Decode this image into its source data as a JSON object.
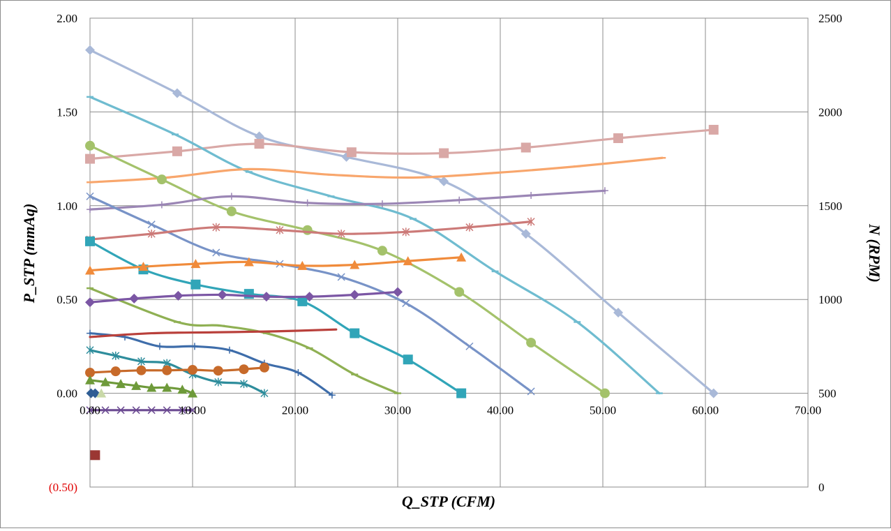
{
  "chart_data": {
    "type": "line",
    "title": "",
    "xlabel": "Q_STP (CFM)",
    "ylabel": "P_STP (mmAq)",
    "y2label": "N (RPM)",
    "xlim": [
      0,
      70
    ],
    "ylim": [
      -0.5,
      2.0
    ],
    "y2lim": [
      0,
      2500
    ],
    "grid": true,
    "legend": "none",
    "x_ticks": [
      "0.00",
      "10.00",
      "20.00",
      "30.00",
      "40.00",
      "50.00",
      "60.00",
      "70.00"
    ],
    "y_ticks": [
      "(0.50)",
      "0.00",
      "0.50",
      "1.00",
      "1.50",
      "2.00"
    ],
    "y2_ticks": [
      "0",
      "500",
      "1000",
      "1500",
      "2000",
      "2500"
    ],
    "colors": {
      "grid": "#8c8c8c",
      "negative_tick": "#e00000"
    },
    "series": [
      {
        "color": "#a9b9d8",
        "marker": "diamond",
        "axis": "left",
        "x": [
          0,
          8.5,
          16.5,
          25,
          34.5,
          42.5,
          51.5,
          60.8
        ],
        "y": [
          1.83,
          1.6,
          1.37,
          1.26,
          1.13,
          0.85,
          0.43,
          0.0
        ]
      },
      {
        "color": "#d9a8a6",
        "marker": "square",
        "axis": "right",
        "x": [
          0,
          8.5,
          16.5,
          25.5,
          34.5,
          42.5,
          51.5,
          60.8
        ],
        "y": [
          1750,
          1790,
          1830,
          1785,
          1780,
          1810,
          1860,
          1905
        ]
      },
      {
        "color": "#6fbcd0",
        "marker": "dash",
        "axis": "left",
        "x": [
          0,
          8.3,
          15.5,
          23.5,
          31.5,
          39.5,
          47.5,
          55.5
        ],
        "y": [
          1.58,
          1.38,
          1.18,
          1.05,
          0.93,
          0.65,
          0.38,
          0.0
        ]
      },
      {
        "color": "#f8a66c",
        "marker": "dash",
        "axis": "right",
        "x": [
          0,
          7.5,
          15.5,
          23.5,
          31.5,
          39.5,
          47.5,
          55.8
        ],
        "y": [
          1625,
          1650,
          1695,
          1665,
          1650,
          1675,
          1710,
          1755
        ]
      },
      {
        "color": "#a4c26b",
        "marker": "circle",
        "axis": "left",
        "x": [
          0,
          7,
          13.8,
          21.2,
          28.5,
          36,
          43,
          50.2
        ],
        "y": [
          1.32,
          1.14,
          0.97,
          0.87,
          0.76,
          0.54,
          0.27,
          0.0
        ]
      },
      {
        "color": "#9b86b5",
        "marker": "plus",
        "axis": "right",
        "x": [
          0,
          7,
          13.8,
          21.2,
          28.5,
          36,
          43,
          50.2
        ],
        "y": [
          1480,
          1505,
          1550,
          1515,
          1510,
          1530,
          1555,
          1580
        ]
      },
      {
        "color": "#7893c7",
        "marker": "x",
        "axis": "left",
        "x": [
          0,
          6,
          12.3,
          18.5,
          24.5,
          30.8,
          37,
          43
        ],
        "y": [
          1.05,
          0.9,
          0.75,
          0.69,
          0.62,
          0.48,
          0.25,
          0.01
        ]
      },
      {
        "color": "#cc7a78",
        "marker": "star",
        "axis": "right",
        "x": [
          0,
          6,
          12.3,
          18.5,
          24.5,
          30.8,
          37,
          43
        ],
        "y": [
          1320,
          1350,
          1385,
          1370,
          1350,
          1360,
          1385,
          1415
        ]
      },
      {
        "color": "#31a5b8",
        "marker": "square",
        "axis": "left",
        "x": [
          0,
          5.2,
          10.3,
          15.5,
          20.7,
          25.8,
          31,
          36.2
        ],
        "y": [
          0.81,
          0.66,
          0.58,
          0.53,
          0.49,
          0.32,
          0.18,
          0.0
        ]
      },
      {
        "color": "#f08b3b",
        "marker": "triangle",
        "axis": "right",
        "x": [
          0,
          5.2,
          10.3,
          15.5,
          20.7,
          25.8,
          31,
          36.2
        ],
        "y": [
          1155,
          1175,
          1190,
          1200,
          1180,
          1185,
          1205,
          1225
        ]
      },
      {
        "color": "#8fb053",
        "marker": "dash",
        "axis": "left",
        "x": [
          0,
          8.5,
          12.8,
          17.2,
          21.4,
          25.8,
          30
        ],
        "y": [
          0.56,
          0.38,
          0.36,
          0.32,
          0.24,
          0.1,
          0.0
        ]
      },
      {
        "color": "#7b56a4",
        "marker": "diamond",
        "axis": "right",
        "x": [
          0,
          4.3,
          8.6,
          12.9,
          17.2,
          21.4,
          25.8,
          30
        ],
        "y": [
          985,
          1005,
          1020,
          1025,
          1015,
          1015,
          1025,
          1040
        ]
      },
      {
        "color": "#3e6daa",
        "marker": "plus",
        "axis": "left",
        "x": [
          0,
          3.4,
          6.8,
          10.2,
          13.6,
          17,
          20.3,
          23.6
        ],
        "y": [
          0.32,
          0.3,
          0.25,
          0.25,
          0.23,
          0.16,
          0.11,
          -0.01
        ]
      },
      {
        "color": "#b9403b",
        "marker": "none",
        "axis": "right",
        "x": [
          0,
          6,
          12,
          18,
          24
        ],
        "y": [
          800,
          820,
          825,
          830,
          840
        ]
      },
      {
        "color": "#2e8d9c",
        "marker": "star",
        "axis": "left",
        "x": [
          0,
          2.5,
          5,
          7.5,
          10,
          12.5,
          15,
          17
        ],
        "y": [
          0.23,
          0.2,
          0.17,
          0.16,
          0.1,
          0.06,
          0.05,
          0.0
        ]
      },
      {
        "color": "#c76a2a",
        "marker": "circle",
        "axis": "right",
        "x": [
          0,
          2.5,
          5,
          7.5,
          10,
          12.5,
          15,
          17
        ],
        "y": [
          610,
          617,
          622,
          622,
          625,
          620,
          628,
          637
        ]
      },
      {
        "color": "#6e9a3a",
        "marker": "triangle",
        "axis": "left",
        "x": [
          0,
          1.5,
          3,
          4.5,
          6,
          7.5,
          9,
          10
        ],
        "y": [
          0.07,
          0.06,
          0.05,
          0.04,
          0.03,
          0.03,
          0.02,
          0.0
        ]
      },
      {
        "color": "#6b4a92",
        "marker": "x",
        "axis": "right",
        "x": [
          0,
          1.5,
          3,
          4.5,
          6,
          7.5,
          9,
          10
        ],
        "y": [
          410,
          410,
          410,
          410,
          410,
          410,
          410,
          410
        ]
      },
      {
        "color": "#2f5d94",
        "marker": "diamond",
        "axis": "left",
        "x": [
          0.1,
          0.5
        ],
        "y": [
          0.0,
          0.0
        ]
      },
      {
        "color": "#c9d9a8",
        "marker": "triangle",
        "axis": "left",
        "x": [
          1.1
        ],
        "y": [
          0.0
        ]
      },
      {
        "color": "#9b3733",
        "marker": "square",
        "axis": "right",
        "x": [
          0.5
        ],
        "y": [
          170
        ]
      }
    ]
  }
}
